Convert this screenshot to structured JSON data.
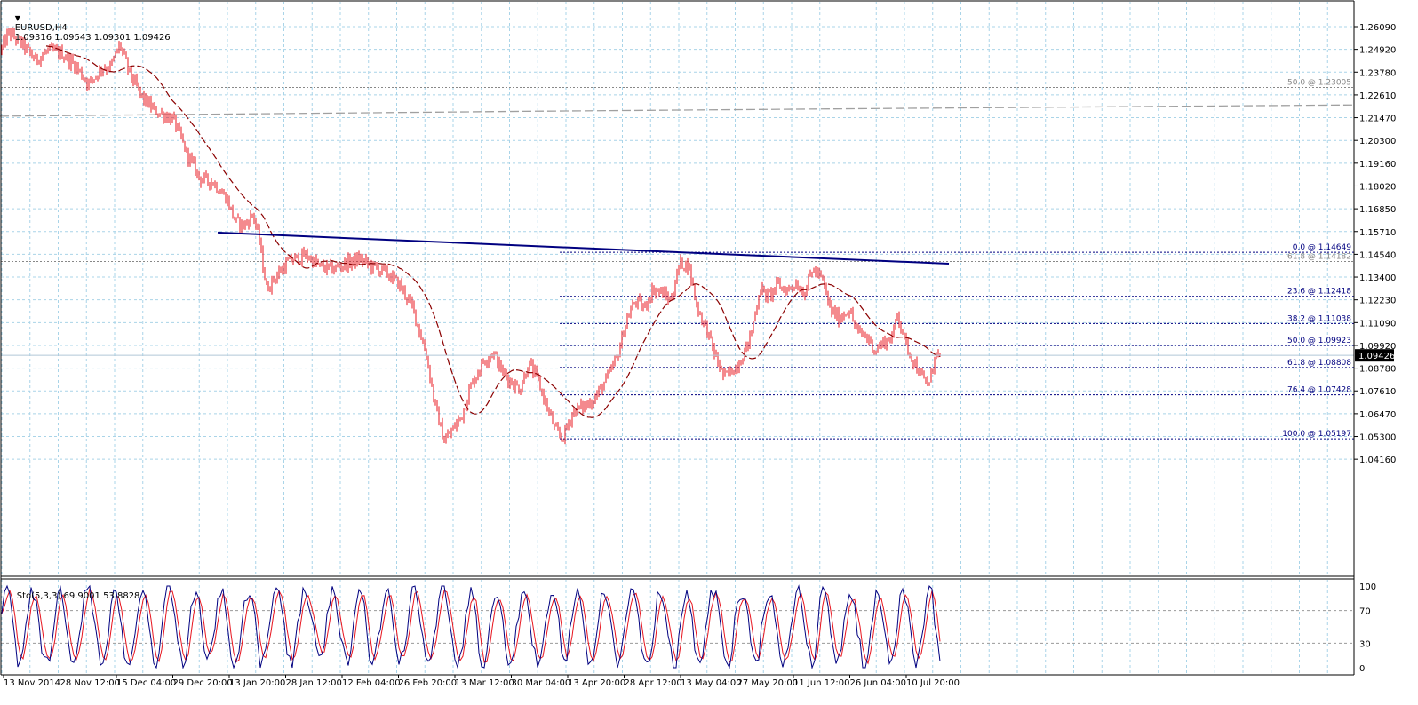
{
  "header": {
    "symbol": "EURUSD,H4",
    "ohlc": "1.09316 1.09543 1.09301 1.09426"
  },
  "subheader": {
    "label": "Sto(5,3,3) 69.9001 53.8828"
  },
  "colors": {
    "background": "#ffffff",
    "grid": "#a9d4e8",
    "candle": "#e8141e",
    "ma_fast": "#8b0000",
    "ma_slow": "#a0a0a0",
    "trendline": "#000080",
    "fib": "#000080",
    "fib_text": "#000080",
    "stoch_main": "#000080",
    "stoch_signal": "#e8141e",
    "price_label_bg": "#000000",
    "price_label_text": "#ffffff"
  },
  "chart_data": [
    {
      "type": "candlestick",
      "title": "EURUSD,H4",
      "x_ticks": [
        "13 Nov 2014",
        "28 Nov 12:00",
        "15 Dec 04:00",
        "29 Dec 20:00",
        "13 Jan 20:00",
        "28 Jan 12:00",
        "12 Feb 04:00",
        "26 Feb 20:00",
        "13 Mar 12:00",
        "30 Mar 04:00",
        "13 Apr 20:00",
        "28 Apr 12:00",
        "13 May 04:00",
        "27 May 20:00",
        "11 Jun 12:00",
        "26 Jun 04:00",
        "10 Jul 20:00"
      ],
      "y_ticks": [
        "1.26090",
        "1.24920",
        "1.23780",
        "1.22610",
        "1.21470",
        "1.20300",
        "1.19160",
        "1.18020",
        "1.16850",
        "1.15710",
        "1.14540",
        "1.13400",
        "1.12230",
        "1.11090",
        "1.09920",
        "1.08780",
        "1.07610",
        "1.06470",
        "1.05300",
        "1.04160"
      ],
      "ylim": [
        1.0395,
        1.2658
      ],
      "current_price": "1.09426",
      "price_path": [
        [
          0,
          1.248
        ],
        [
          10,
          1.258
        ],
        [
          25,
          1.252
        ],
        [
          40,
          1.244
        ],
        [
          55,
          1.249
        ],
        [
          70,
          1.247
        ],
        [
          85,
          1.241
        ],
        [
          100,
          1.232
        ],
        [
          115,
          1.24
        ],
        [
          125,
          1.241
        ],
        [
          135,
          1.252
        ],
        [
          145,
          1.238
        ],
        [
          160,
          1.225
        ],
        [
          175,
          1.218
        ],
        [
          195,
          1.214
        ],
        [
          210,
          1.197
        ],
        [
          225,
          1.184
        ],
        [
          240,
          1.182
        ],
        [
          255,
          1.174
        ],
        [
          265,
          1.162
        ],
        [
          275,
          1.16
        ],
        [
          285,
          1.166
        ],
        [
          292,
          1.152
        ],
        [
          300,
          1.128
        ],
        [
          310,
          1.134
        ],
        [
          325,
          1.142
        ],
        [
          345,
          1.145
        ],
        [
          360,
          1.139
        ],
        [
          375,
          1.138
        ],
        [
          390,
          1.141
        ],
        [
          405,
          1.143
        ],
        [
          420,
          1.139
        ],
        [
          435,
          1.136
        ],
        [
          450,
          1.13
        ],
        [
          465,
          1.118
        ],
        [
          480,
          1.094
        ],
        [
          490,
          1.068
        ],
        [
          500,
          1.051
        ],
        [
          510,
          1.057
        ],
        [
          520,
          1.064
        ],
        [
          530,
          1.079
        ],
        [
          545,
          1.092
        ],
        [
          555,
          1.096
        ],
        [
          565,
          1.086
        ],
        [
          575,
          1.081
        ],
        [
          585,
          1.077
        ],
        [
          595,
          1.09
        ],
        [
          605,
          1.082
        ],
        [
          615,
          1.069
        ],
        [
          625,
          1.056
        ],
        [
          633,
          1.052
        ],
        [
          645,
          1.066
        ],
        [
          660,
          1.069
        ],
        [
          670,
          1.073
        ],
        [
          685,
          1.084
        ],
        [
          695,
          1.094
        ],
        [
          705,
          1.112
        ],
        [
          715,
          1.122
        ],
        [
          725,
          1.118
        ],
        [
          735,
          1.128
        ],
        [
          745,
          1.126
        ],
        [
          755,
          1.122
        ],
        [
          765,
          1.141
        ],
        [
          775,
          1.14
        ],
        [
          785,
          1.118
        ],
        [
          795,
          1.108
        ],
        [
          805,
          1.094
        ],
        [
          815,
          1.083
        ],
        [
          825,
          1.087
        ],
        [
          835,
          1.093
        ],
        [
          845,
          1.104
        ],
        [
          855,
          1.128
        ],
        [
          865,
          1.124
        ],
        [
          875,
          1.13
        ],
        [
          885,
          1.127
        ],
        [
          895,
          1.131
        ],
        [
          905,
          1.126
        ],
        [
          915,
          1.138
        ],
        [
          925,
          1.133
        ],
        [
          935,
          1.117
        ],
        [
          945,
          1.113
        ],
        [
          955,
          1.118
        ],
        [
          965,
          1.106
        ],
        [
          975,
          1.104
        ],
        [
          985,
          1.097
        ],
        [
          995,
          1.101
        ],
        [
          1005,
          1.104
        ],
        [
          1010,
          1.116
        ],
        [
          1020,
          1.099
        ],
        [
          1030,
          1.09
        ],
        [
          1040,
          1.081
        ],
        [
          1047,
          1.08
        ],
        [
          1052,
          1.095
        ],
        [
          1058,
          1.094
        ]
      ],
      "trendline": [
        [
          245,
          1.1565
        ],
        [
          1068,
          1.1407
        ]
      ],
      "ma_slow_line": [
        [
          0,
          1.2155
        ],
        [
          600,
          1.218
        ],
        [
          1000,
          1.2194
        ],
        [
          1525,
          1.2212
        ]
      ],
      "fibonacci": [
        {
          "label": "0.0 @ 1.14649",
          "price": 1.14649
        },
        {
          "label": "61.8 @ 1.14182",
          "price": 1.14182
        },
        {
          "label": "23.6 @ 1.12418",
          "price": 1.12418
        },
        {
          "label": "38.2 @ 1.11038",
          "price": 1.11038
        },
        {
          "label": "50.0 @ 1.09923",
          "price": 1.09923
        },
        {
          "label": "61.8 @ 1.08808",
          "price": 1.08808
        },
        {
          "label": "76.4 @ 1.07428",
          "price": 1.07428
        },
        {
          "label": "100.0 @ 1.05197",
          "price": 1.05197
        },
        {
          "label": "50.0 @ 1.23005",
          "price": 1.23005
        }
      ]
    },
    {
      "type": "line",
      "title": "Sto(5,3,3) 69.9001 53.8828",
      "y_ticks": [
        "100",
        "70",
        "30",
        "0"
      ],
      "ylim": [
        0,
        100
      ],
      "levels": [
        70,
        30
      ]
    }
  ]
}
